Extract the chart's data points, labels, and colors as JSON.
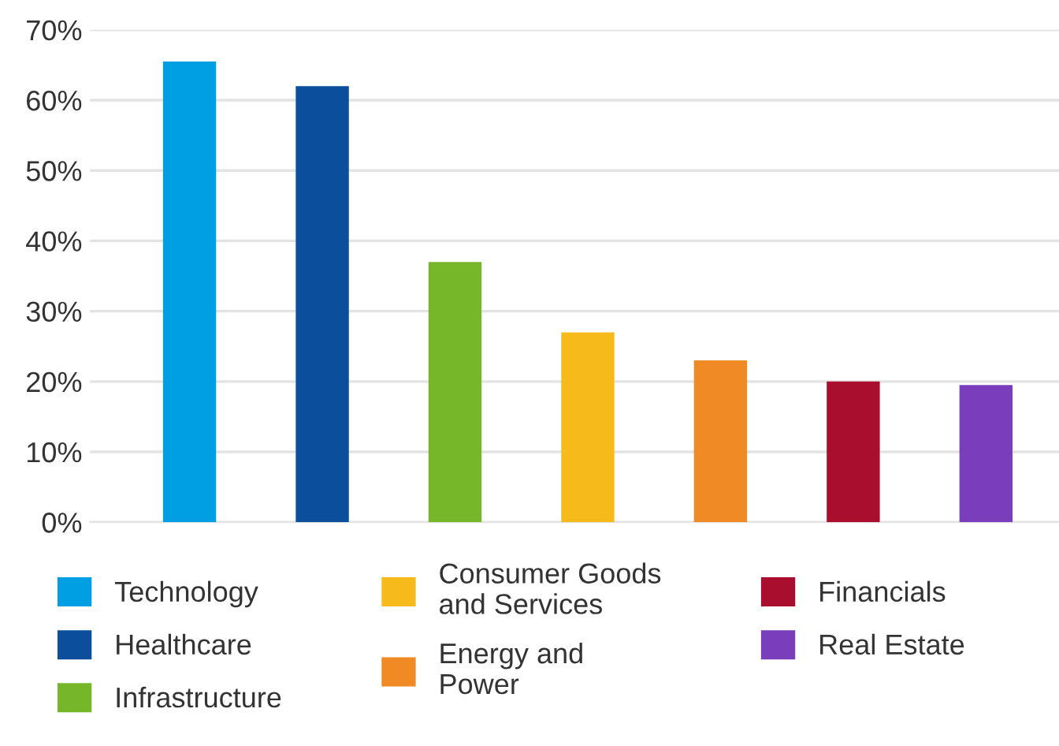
{
  "chart_data": {
    "type": "bar",
    "categories": [
      null,
      null,
      null,
      null,
      null,
      null,
      null
    ],
    "series": [
      {
        "name": "Technology",
        "color": "#009fe3",
        "values": [
          65.5,
          null,
          null,
          null,
          null,
          null,
          null
        ]
      },
      {
        "name": "Healthcare",
        "color": "#0b4f9c",
        "values": [
          null,
          62,
          null,
          null,
          null,
          null,
          null
        ]
      },
      {
        "name": "Infrastructure",
        "color": "#76b72a",
        "values": [
          null,
          null,
          37,
          null,
          null,
          null,
          null
        ]
      },
      {
        "name": "Consumer Goods\nand Services",
        "color": "#f6bb1a",
        "values": [
          null,
          null,
          null,
          27,
          null,
          null,
          null
        ]
      },
      {
        "name": "Energy and\nPower",
        "color": "#f08a24",
        "values": [
          null,
          null,
          null,
          null,
          23,
          null,
          null
        ]
      },
      {
        "name": "Financials",
        "color": "#a90e2e",
        "values": [
          null,
          null,
          null,
          null,
          null,
          20,
          null
        ]
      },
      {
        "name": "Real Estate",
        "color": "#7a3dbb",
        "values": [
          null,
          null,
          null,
          null,
          null,
          null,
          19.5
        ]
      }
    ],
    "ylim": [
      0,
      70
    ],
    "yticks": [
      {
        "value": 0,
        "label": "0%"
      },
      {
        "value": 10,
        "label": "10%"
      },
      {
        "value": 20,
        "label": "20%"
      },
      {
        "value": 30,
        "label": "30%"
      },
      {
        "value": 40,
        "label": "40%"
      },
      {
        "value": 50,
        "label": "50%"
      },
      {
        "value": 60,
        "label": "60%"
      },
      {
        "value": 70,
        "label": "70%"
      }
    ],
    "grid": "y",
    "legend": "bottom",
    "tick_labels": "y"
  }
}
